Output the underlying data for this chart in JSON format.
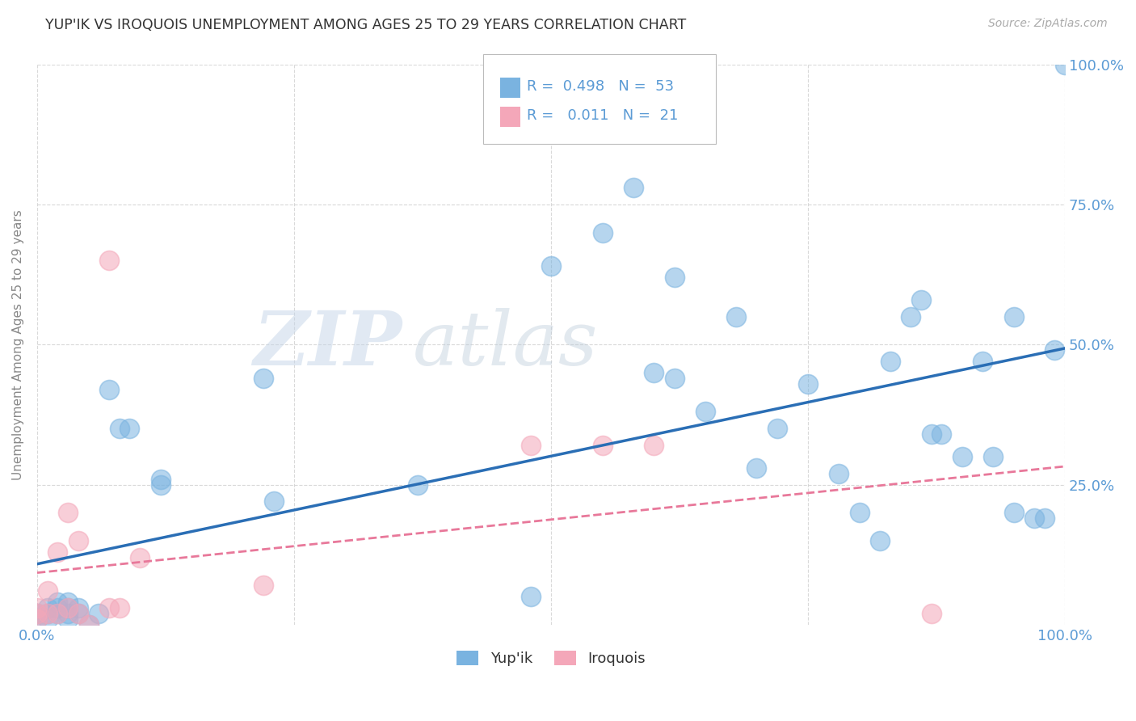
{
  "title": "YUP'IK VS IROQUOIS UNEMPLOYMENT AMONG AGES 25 TO 29 YEARS CORRELATION CHART",
  "source": "Source: ZipAtlas.com",
  "ylabel": "Unemployment Among Ages 25 to 29 years",
  "xlim": [
    0.0,
    1.0
  ],
  "ylim": [
    0.0,
    1.0
  ],
  "xticks": [
    0.0,
    0.25,
    0.5,
    0.75,
    1.0
  ],
  "yticks": [
    0.25,
    0.5,
    0.75,
    1.0
  ],
  "xticklabels_left": "0.0%",
  "xticklabels_right": "100.0%",
  "right_yticklabels": [
    "25.0%",
    "50.0%",
    "75.0%",
    "100.0%"
  ],
  "right_yticks": [
    0.25,
    0.5,
    0.75,
    1.0
  ],
  "legend_r1": "0.498",
  "legend_n1": "53",
  "legend_r2": "0.011",
  "legend_n2": "21",
  "color_yupik": "#7ab3e0",
  "color_iroquois": "#f4a7b9",
  "color_yupik_line": "#2a6eb5",
  "color_iroquois_line": "#e8789a",
  "watermark_zip": "ZIP",
  "watermark_atlas": "atlas",
  "tick_color": "#5b9bd5",
  "title_color": "#333333",
  "source_color": "#aaaaaa",
  "ylabel_color": "#888888",
  "background_color": "#ffffff",
  "grid_color": "#d0d0d0",
  "figsize": [
    14.06,
    8.92
  ],
  "dpi": 100,
  "yupik_x": [
    0.0,
    0.0,
    0.01,
    0.01,
    0.01,
    0.02,
    0.02,
    0.02,
    0.03,
    0.03,
    0.03,
    0.03,
    0.04,
    0.04,
    0.05,
    0.06,
    0.07,
    0.08,
    0.09,
    0.12,
    0.12,
    0.22,
    0.23,
    0.37,
    0.48,
    0.5,
    0.55,
    0.58,
    0.6,
    0.62,
    0.65,
    0.68,
    0.7,
    0.72,
    0.75,
    0.78,
    0.8,
    0.82,
    0.83,
    0.85,
    0.86,
    0.87,
    0.88,
    0.9,
    0.92,
    0.93,
    0.95,
    0.95,
    0.97,
    0.98,
    0.99,
    1.0,
    0.62
  ],
  "yupik_y": [
    0.01,
    0.02,
    0.01,
    0.02,
    0.03,
    0.02,
    0.03,
    0.04,
    0.01,
    0.02,
    0.03,
    0.04,
    0.02,
    0.03,
    0.0,
    0.02,
    0.42,
    0.35,
    0.35,
    0.26,
    0.25,
    0.44,
    0.22,
    0.25,
    0.05,
    0.64,
    0.7,
    0.78,
    0.45,
    0.44,
    0.38,
    0.55,
    0.28,
    0.35,
    0.43,
    0.27,
    0.2,
    0.15,
    0.47,
    0.55,
    0.58,
    0.34,
    0.34,
    0.3,
    0.47,
    0.3,
    0.2,
    0.55,
    0.19,
    0.19,
    0.49,
    1.0,
    0.62
  ],
  "iroquois_x": [
    0.0,
    0.0,
    0.0,
    0.01,
    0.01,
    0.02,
    0.02,
    0.03,
    0.03,
    0.04,
    0.04,
    0.05,
    0.07,
    0.07,
    0.08,
    0.1,
    0.22,
    0.48,
    0.55,
    0.6,
    0.87
  ],
  "iroquois_y": [
    0.01,
    0.02,
    0.03,
    0.02,
    0.06,
    0.02,
    0.13,
    0.03,
    0.2,
    0.02,
    0.15,
    0.0,
    0.65,
    0.03,
    0.03,
    0.12,
    0.07,
    0.32,
    0.32,
    0.32,
    0.02
  ]
}
